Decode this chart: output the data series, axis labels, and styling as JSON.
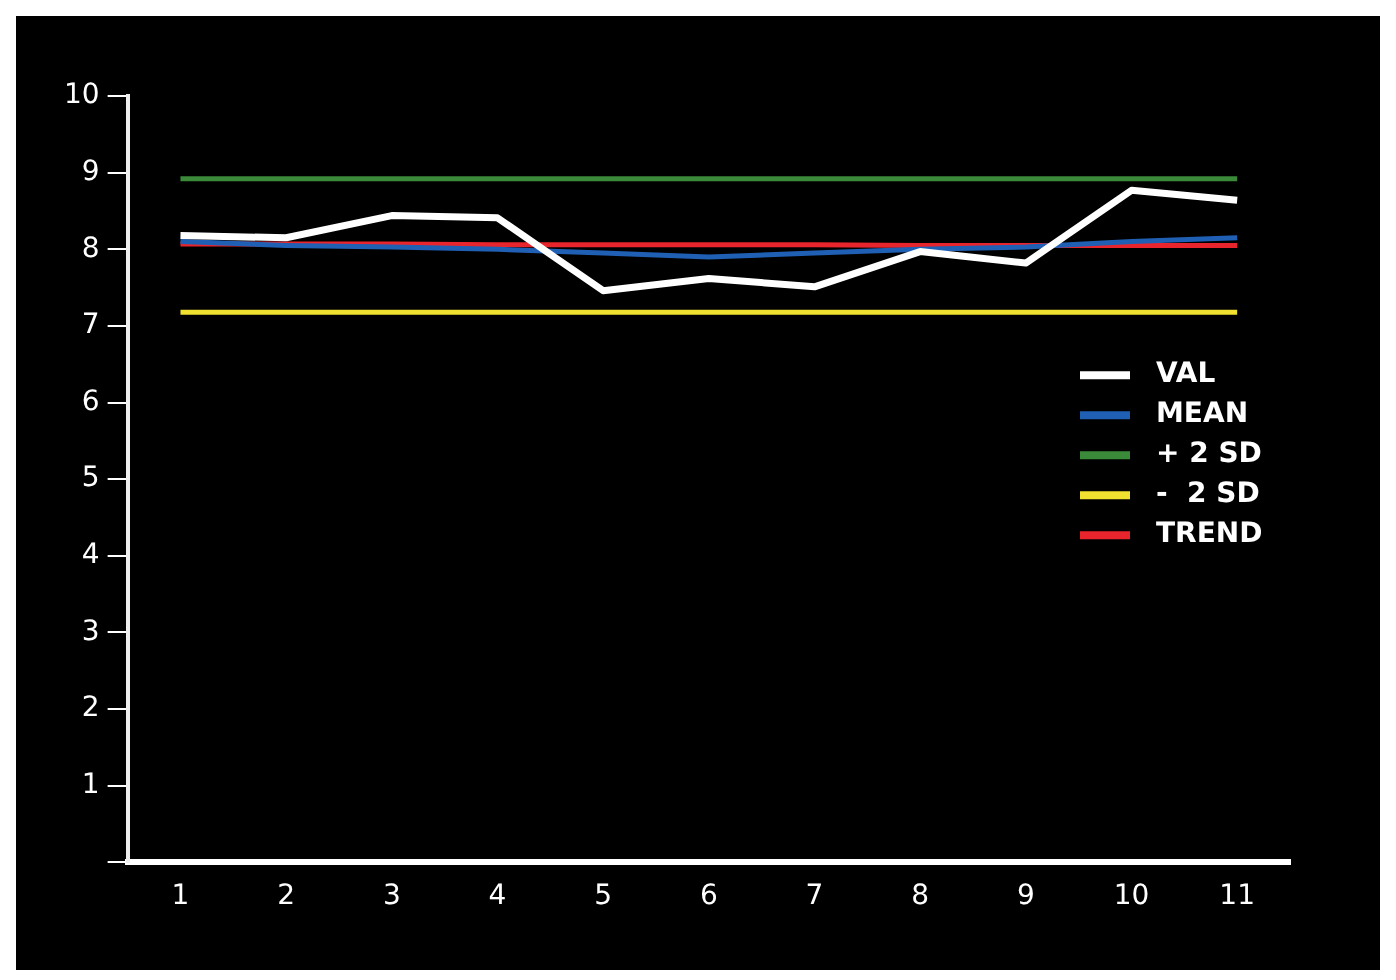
{
  "chart_data": {
    "type": "line",
    "categories": [
      "1",
      "2",
      "3",
      "4",
      "5",
      "6",
      "7",
      "8",
      "9",
      "10",
      "11"
    ],
    "series": [
      {
        "name": "VAL",
        "color": "#ffffff",
        "values": [
          8.18,
          8.15,
          8.44,
          8.41,
          7.46,
          7.62,
          7.51,
          7.97,
          7.82,
          8.77,
          8.64
        ]
      },
      {
        "name": "MEAN",
        "color": "#1f5fb4",
        "values": [
          8.1,
          8.05,
          8.03,
          8.0,
          7.95,
          7.9,
          7.95,
          8.0,
          8.03,
          8.1,
          8.15
        ]
      },
      {
        "name": "+ 2 SD",
        "color": "#3a8a3a",
        "values": [
          8.92,
          8.92,
          8.92,
          8.92,
          8.92,
          8.92,
          8.92,
          8.92,
          8.92,
          8.92,
          8.92
        ]
      },
      {
        "name": "-  2 SD",
        "color": "#f0e030",
        "values": [
          7.18,
          7.18,
          7.18,
          7.18,
          7.18,
          7.18,
          7.18,
          7.18,
          7.18,
          7.18,
          7.18
        ]
      },
      {
        "name": "TREND",
        "color": "#e8242c",
        "values": [
          8.07,
          8.07,
          8.07,
          8.06,
          8.06,
          8.06,
          8.06,
          8.05,
          8.05,
          8.05,
          8.05
        ]
      }
    ],
    "ylim": [
      0,
      10
    ],
    "yticks": [
      {
        "value": 0,
        "label": null
      },
      1,
      2,
      3,
      4,
      5,
      6,
      7,
      8,
      9,
      10
    ],
    "grid": false,
    "legend": "right",
    "marker": "none",
    "line_style": "solid"
  }
}
